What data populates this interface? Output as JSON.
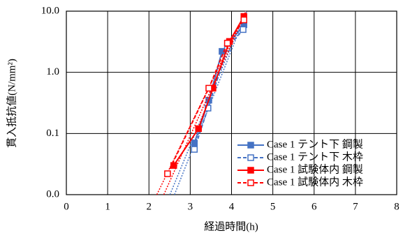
{
  "chart_data": {
    "type": "line",
    "log_y": true,
    "grid": true,
    "trendline": true,
    "legend": "lower right",
    "x_label": "経過時間(h)",
    "y_label": "貫入抵抗値(N/mm²)",
    "xlim": [
      0,
      8
    ],
    "xticks": [
      0,
      1,
      2,
      3,
      4,
      5,
      6,
      7,
      8
    ],
    "ylim": [
      0.01,
      10
    ],
    "yticks": [
      {
        "value": 0.01,
        "label": "0.0"
      },
      {
        "value": 0.1,
        "label": "0.1"
      },
      {
        "value": 1,
        "label": "1.0"
      },
      {
        "value": 10,
        "label": "10.0"
      }
    ],
    "series": [
      {
        "name": "Case 1 テント下 鋼製",
        "color": "#4472c4",
        "marker": "filled",
        "x": [
          3.1,
          3.45,
          3.77,
          4.3
        ],
        "values": [
          0.07,
          0.35,
          2.2,
          6.0
        ]
      },
      {
        "name": "Case 1 テント下 木枠",
        "color": "#4472c4",
        "marker": "open",
        "x": [
          3.1,
          3.43,
          3.9,
          4.28
        ],
        "values": [
          0.055,
          0.26,
          2.5,
          5.0
        ]
      },
      {
        "name": "Case 1 試験体内 鋼製",
        "color": "#ff0000",
        "marker": "filled",
        "x": [
          2.6,
          3.2,
          3.55,
          3.95,
          4.3
        ],
        "values": [
          0.03,
          0.12,
          0.55,
          3.2,
          8.2
        ]
      },
      {
        "name": "Case 1 試験体内 木枠",
        "color": "#ff0000",
        "marker": "open",
        "x": [
          2.45,
          3.45,
          3.9,
          4.3
        ],
        "values": [
          0.022,
          0.55,
          3.0,
          7.2
        ]
      }
    ]
  }
}
